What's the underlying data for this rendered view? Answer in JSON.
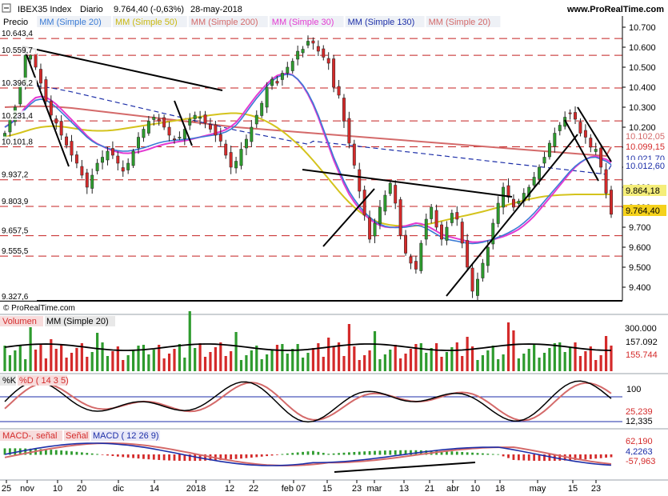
{
  "header": {
    "symbol": "IBEX35 Index",
    "period": "Diario",
    "last": "9.764,40 (-0,63%)",
    "date": "28-may-2018",
    "site": "www.ProRealTime.com",
    "copyright": "© ProRealTime.com"
  },
  "colors": {
    "candle_up": "#2e9b2e",
    "candle_down": "#d42a2a",
    "sma20": "#3a7bd5",
    "sma50": "#d4c31c",
    "sma200": "#d46a6a",
    "sma30": "#e33ad1",
    "sma130": "#1c2ea8",
    "hline": "#c42020",
    "trend": "#000000"
  },
  "price_panel": {
    "legend": [
      {
        "label": "Precio",
        "color": "#000000"
      },
      {
        "label": "MM (Simple 20)",
        "color": "#3a7bd5"
      },
      {
        "label": "MM (Simple 50)",
        "color": "#c9b80f"
      },
      {
        "label": "MM (Simple 200)",
        "color": "#d46a6a"
      },
      {
        "label": "MM (Simple 30)",
        "color": "#e33ad1"
      },
      {
        "label": "MM (Simple 130)",
        "color": "#1c2ea8"
      },
      {
        "label": "MM (Simple 20)",
        "color": "#d46a6a"
      }
    ],
    "levels": [
      "10.643,4",
      "10.559,7",
      "10.396,2",
      "10.231,4",
      "10.101,8",
      "9.937,2",
      "9.803,9",
      "9.657,5",
      "9.555,5",
      "9.327,6"
    ],
    "axis_ticks": [
      "10.700",
      "10.600",
      "10.500",
      "10.400",
      "10.300",
      "10.200",
      "10.100",
      "10.000",
      "9.900",
      "9.800",
      "9.700",
      "9.600",
      "9.500",
      "9.400"
    ],
    "tags": [
      {
        "text": "10.102,05",
        "bg": "#ffffff",
        "fg": "#d46a6a"
      },
      {
        "text": "10.099,15",
        "bg": "#ffffff",
        "fg": "#d42a2a"
      },
      {
        "text": "10.021,70",
        "bg": "#ffffff",
        "fg": "#1c2ea8"
      },
      {
        "text": "10.012,60",
        "bg": "#ffffff",
        "fg": "#1c2ea8"
      },
      {
        "text": "9.864,18",
        "bg": "#f5ee7a",
        "fg": "#000000"
      },
      {
        "text": "9.764,40",
        "bg": "#f5d21c",
        "fg": "#000000"
      }
    ]
  },
  "volume_panel": {
    "legend": [
      "Volumen",
      "MM (Simple 20)"
    ],
    "axis_ticks": [
      "300.000"
    ],
    "tags": [
      {
        "text": "157.092",
        "fg": "#000000"
      },
      {
        "text": "155.744",
        "fg": "#d42a2a"
      }
    ]
  },
  "stoch_panel": {
    "legend": [
      "%K",
      "%D ( 14 3 5)"
    ],
    "axis_ticks": [
      "100"
    ],
    "tags": [
      {
        "text": "25,239",
        "fg": "#d42a2a"
      },
      {
        "text": "12,335",
        "fg": "#000000"
      }
    ]
  },
  "macd_panel": {
    "legend": [
      "MACD-, señal",
      "Señal",
      "MACD ( 12 26 9)"
    ],
    "tags": [
      {
        "text": "62,190",
        "fg": "#d42a2a"
      },
      {
        "text": "4,2263",
        "fg": "#1c2ea8"
      },
      {
        "text": "-57,963",
        "fg": "#d42a2a"
      }
    ]
  },
  "x_axis": {
    "labels": [
      "25",
      "nov",
      "10",
      "20",
      "dic",
      "14",
      "2018",
      "12",
      "22",
      "feb 07",
      "15",
      "23",
      "mar",
      "13",
      "21",
      "abr",
      "10",
      "18",
      "may",
      "15",
      "23"
    ]
  },
  "chart_data": {
    "type": "candlestick",
    "title": "IBEX35 Index Diario",
    "x_range": [
      "25-oct-2017",
      "28-may-2018"
    ],
    "ylim": [
      9327.6,
      10700
    ],
    "last_close": 9764.4,
    "change_pct": -0.63,
    "close": [
      10170,
      10240,
      10300,
      10420,
      10560,
      10560,
      10500,
      10420,
      10330,
      10260,
      10220,
      10160,
      10110,
      10060,
      10020,
      9960,
      9900,
      9960,
      10020,
      10050,
      10080,
      10060,
      10020,
      9980,
      10020,
      10080,
      10150,
      10190,
      10230,
      10250,
      10230,
      10200,
      10160,
      10140,
      10150,
      10190,
      10240,
      10260,
      10250,
      10220,
      10190,
      10160,
      10130,
      10060,
      10000,
      10030,
      10090,
      10140,
      10200,
      10260,
      10320,
      10400,
      10440,
      10420,
      10470,
      10500,
      10530,
      10580,
      10590,
      10630,
      10620,
      10580,
      10550,
      10520,
      10400,
      10360,
      10230,
      10120,
      10010,
      9880,
      9760,
      9640,
      9720,
      9800,
      9860,
      9920,
      9820,
      9660,
      9570,
      9520,
      9490,
      9620,
      9740,
      9800,
      9700,
      9640,
      9700,
      9770,
      9740,
      9620,
      9500,
      9380,
      9440,
      9520,
      9600,
      9720,
      9820,
      9900,
      9850,
      9800,
      9830,
      9870,
      9900,
      9950,
      10000,
      10050,
      10120,
      10170,
      10210,
      10250,
      10270,
      10240,
      10170,
      10150,
      10100,
      10090,
      10000,
      9870,
      9764.4
    ],
    "sma20": [
      10200,
      10215,
      10235,
      10260,
      10290,
      10315,
      10335,
      10340,
      10335,
      10320,
      10300,
      10275,
      10250,
      10225,
      10200,
      10175,
      10150,
      10130,
      10115,
      10105,
      10095,
      10088,
      10083,
      10080,
      10081,
      10085,
      10090,
      10097,
      10105,
      10114,
      10122,
      10128,
      10132,
      10135,
      10137,
      10139,
      10142,
      10146,
      10150,
      10154,
      10158,
      10162,
      10168,
      10176,
      10190,
      10210,
      10240,
      10275,
      10310,
      10345,
      10375,
      10405,
      10430,
      10450,
      10460,
      10465,
      10460,
      10440,
      10410,
      10370,
      10320,
      10260,
      10190,
      10120,
      10050,
      9990,
      9930,
      9880,
      9840,
      9805,
      9775,
      9750,
      9730,
      9715,
      9705,
      9700,
      9698,
      9698,
      9700,
      9705,
      9710,
      9705,
      9695,
      9680,
      9665,
      9650,
      9640,
      9635,
      9630,
      9625,
      9620,
      9618,
      9620,
      9625,
      9632,
      9640,
      9650,
      9660,
      9672,
      9686,
      9702,
      9722,
      9745,
      9770,
      9800,
      9830,
      9860,
      9890,
      9920,
      9950,
      9980,
      10005,
      10025,
      10040,
      10048,
      10050,
      10040,
      10030,
      10012.6
    ],
    "sma50": [
      10150,
      10158,
      10165,
      10172,
      10180,
      10188,
      10195,
      10200,
      10203,
      10205,
      10205,
      10203,
      10200,
      10196,
      10192,
      10188,
      10185,
      10183,
      10182,
      10182,
      10183,
      10185,
      10188,
      10192,
      10196,
      10200,
      10204,
      10208,
      10212,
      10216,
      10220,
      10224,
      10228,
      10232,
      10236,
      10240,
      10244,
      10248,
      10252,
      10256,
      10260,
      10263,
      10266,
      10268,
      10270,
      10270,
      10268,
      10264,
      10258,
      10250,
      10240,
      10228,
      10214,
      10198,
      10180,
      10160,
      10138,
      10115,
      10090,
      10063,
      10034,
      10004,
      9973,
      9942,
      9911,
      9880,
      9851,
      9824,
      9800,
      9778,
      9760,
      9745,
      9733,
      9723,
      9716,
      9711,
      9708,
      9706,
      9705,
      9705,
      9707,
      9710,
      9714,
      9719,
      9725,
      9731,
      9737,
      9743,
      9749,
      9755,
      9760,
      9766,
      9772,
      9778,
      9785,
      9792,
      9799,
      9806,
      9813,
      9820,
      9827,
      9834,
      9840,
      9845,
      9850,
      9854,
      9857,
      9859,
      9861,
      9862,
      9863,
      9864,
      9864,
      9864,
      9864,
      9864,
      9864,
      9864,
      9864.18
    ],
    "sma200": [
      10300,
      10301,
      10302,
      10303,
      10304,
      10305,
      10305,
      10305,
      10304,
      10303,
      10302,
      10300,
      10298,
      10296,
      10293,
      10290,
      10287,
      10284,
      10281,
      10278,
      10275,
      10272,
      10269,
      10266,
      10263,
      10260,
      10257,
      10254,
      10251,
      10248,
      10245,
      10242,
      10239,
      10236,
      10233,
      10230,
      10227,
      10224,
      10221,
      10218,
      10215,
      10212,
      10209,
      10206,
      10203,
      10200,
      10198,
      10196,
      10194,
      10192,
      10190,
      10188,
      10186,
      10184,
      10182,
      10180,
      10178,
      10176,
      10174,
      10172,
      10170,
      10168,
      10166,
      10164,
      10162,
      10160,
      10158,
      10156,
      10154,
      10152,
      10150,
      10148,
      10146,
      10144,
      10142,
      10140,
      10138,
      10136,
      10134,
      10132,
      10130,
      10128,
      10126,
      10124,
      10122,
      10120,
      10118,
      10116,
      10114,
      10112,
      10110,
      10108,
      10106,
      10104,
      10102,
      10100,
      10098,
      10096,
      10094,
      10092,
      10090,
      10088,
      10086,
      10084,
      10082,
      10080,
      10078,
      10076,
      10074,
      10072,
      10070,
      10068,
      10066,
      10064,
      10062,
      10060,
      10058,
      10056,
      10102.05
    ],
    "levels": [
      10643.4,
      10559.7,
      10396.2,
      10231.4,
      10101.8,
      9937.2,
      9803.9,
      9657.5,
      9555.5,
      9327.6
    ],
    "volume_last": 155744,
    "volume_sma20_last": 157092,
    "stoch_k_last": 12.335,
    "stoch_d_last": 25.239,
    "macd_last": 62.19,
    "macd_signal_last": 4.2263,
    "macd_hist_last": -57.963
  }
}
